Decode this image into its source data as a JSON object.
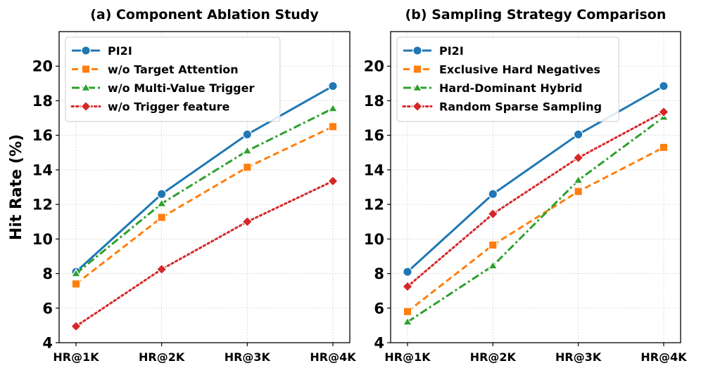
{
  "chart_data": [
    {
      "type": "line",
      "title": "(a) Component Ablation Study",
      "xlabel": "",
      "ylabel": "Hit Rate (%)",
      "categories": [
        "HR@1K",
        "HR@2K",
        "HR@3K",
        "HR@4K"
      ],
      "ylim": [
        4,
        22
      ],
      "yticks": [
        4,
        6,
        8,
        10,
        12,
        14,
        16,
        18,
        20
      ],
      "grid": true,
      "legend": "top-left",
      "series": [
        {
          "name": "PI2I",
          "values": [
            8.1,
            12.6,
            16.05,
            18.85
          ],
          "color": "#1f77b4",
          "dash": "solid",
          "marker": "circle"
        },
        {
          "name": "w/o Target Attention",
          "values": [
            7.4,
            11.25,
            14.15,
            16.5
          ],
          "color": "#ff7f0e",
          "dash": "dashed",
          "marker": "square"
        },
        {
          "name": "w/o Multi-Value Trigger",
          "values": [
            8.0,
            12.05,
            15.1,
            17.55
          ],
          "color": "#2ca02c",
          "dash": "dashdot",
          "marker": "triangle"
        },
        {
          "name": "w/o Trigger feature",
          "values": [
            4.95,
            8.25,
            11.0,
            13.35
          ],
          "color": "#d62728",
          "dash": "dotted",
          "marker": "diamond"
        }
      ]
    },
    {
      "type": "line",
      "title": "(b) Sampling Strategy Comparison",
      "xlabel": "",
      "ylabel": "",
      "categories": [
        "HR@1K",
        "HR@2K",
        "HR@3K",
        "HR@4K"
      ],
      "ylim": [
        4,
        22
      ],
      "yticks": [
        4,
        6,
        8,
        10,
        12,
        14,
        16,
        18,
        20
      ],
      "grid": true,
      "legend": "top-left",
      "series": [
        {
          "name": "PI2I",
          "values": [
            8.1,
            12.6,
            16.05,
            18.85
          ],
          "color": "#1f77b4",
          "dash": "solid",
          "marker": "circle"
        },
        {
          "name": "Exclusive Hard Negatives",
          "values": [
            5.8,
            9.65,
            12.75,
            15.3
          ],
          "color": "#ff7f0e",
          "dash": "dashed",
          "marker": "square"
        },
        {
          "name": "Hard-Dominant Hybrid",
          "values": [
            5.2,
            8.45,
            13.4,
            17.05
          ],
          "color": "#2ca02c",
          "dash": "dashdot",
          "marker": "triangle"
        },
        {
          "name": "Random Sparse Sampling",
          "values": [
            7.25,
            11.45,
            14.7,
            17.35
          ],
          "color": "#d62728",
          "dash": "dotted",
          "marker": "diamond"
        }
      ]
    }
  ]
}
